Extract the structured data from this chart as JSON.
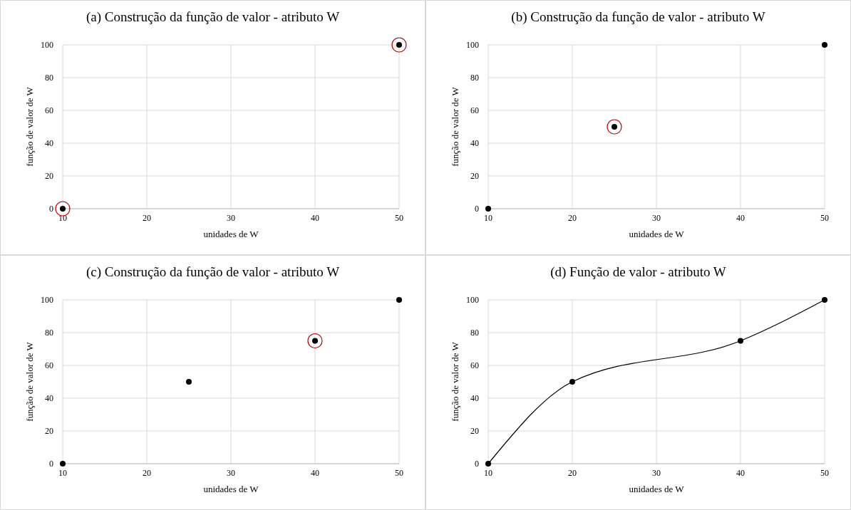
{
  "chart_data": [
    {
      "type": "scatter",
      "title": "(a) Construção da função de valor - atributo W",
      "xlabel": "unidades de W",
      "ylabel": "função de valor de W",
      "xlim": [
        10,
        50
      ],
      "xticks": [
        10,
        20,
        30,
        40,
        50
      ],
      "ylim": [
        0,
        100
      ],
      "yticks": [
        0,
        20,
        40,
        60,
        80,
        100
      ],
      "grid": true,
      "marker": "circle",
      "series": [
        {
          "color": "#000000",
          "x": [
            10,
            50
          ],
          "values": [
            0,
            100
          ]
        },
        {
          "color": "#c00000",
          "x": [
            10,
            50
          ],
          "values": [
            0,
            100
          ]
        }
      ]
    },
    {
      "type": "scatter",
      "title": "(b) Construção da função de valor - atributo W",
      "xlabel": "unidades de W",
      "ylabel": "função de valor de W",
      "xlim": [
        10,
        50
      ],
      "xticks": [
        10,
        20,
        30,
        40,
        50
      ],
      "ylim": [
        0,
        100
      ],
      "yticks": [
        0,
        20,
        40,
        60,
        80,
        100
      ],
      "grid": true,
      "marker": "circle",
      "series": [
        {
          "color": "#000000",
          "x": [
            10,
            25,
            50
          ],
          "values": [
            0,
            50,
            100
          ]
        },
        {
          "color": "#c00000",
          "x": [
            25
          ],
          "values": [
            50
          ]
        }
      ]
    },
    {
      "type": "scatter",
      "title": "(c) Construção da função de valor - atributo W",
      "xlabel": "unidades de W",
      "ylabel": "função de valor de W",
      "xlim": [
        10,
        50
      ],
      "xticks": [
        10,
        20,
        30,
        40,
        50
      ],
      "ylim": [
        0,
        100
      ],
      "yticks": [
        0,
        20,
        40,
        60,
        80,
        100
      ],
      "grid": true,
      "marker": "circle",
      "series": [
        {
          "color": "#000000",
          "x": [
            10,
            25,
            40,
            50
          ],
          "values": [
            0,
            50,
            75,
            100
          ]
        },
        {
          "color": "#c00000",
          "x": [
            40
          ],
          "values": [
            75
          ]
        }
      ]
    },
    {
      "type": "line",
      "title": "(d) Função de valor - atributo W",
      "xlabel": "unidades de W",
      "ylabel": "função de valor de W",
      "xlim": [
        10,
        50
      ],
      "xticks": [
        10,
        20,
        30,
        40,
        50
      ],
      "ylim": [
        0,
        100
      ],
      "yticks": [
        0,
        20,
        40,
        60,
        80,
        100
      ],
      "grid": true,
      "marker": "circle",
      "series": [
        {
          "color": "#000000",
          "x": [
            10,
            20,
            40,
            50
          ],
          "values": [
            0,
            50,
            75,
            100
          ]
        }
      ]
    }
  ]
}
